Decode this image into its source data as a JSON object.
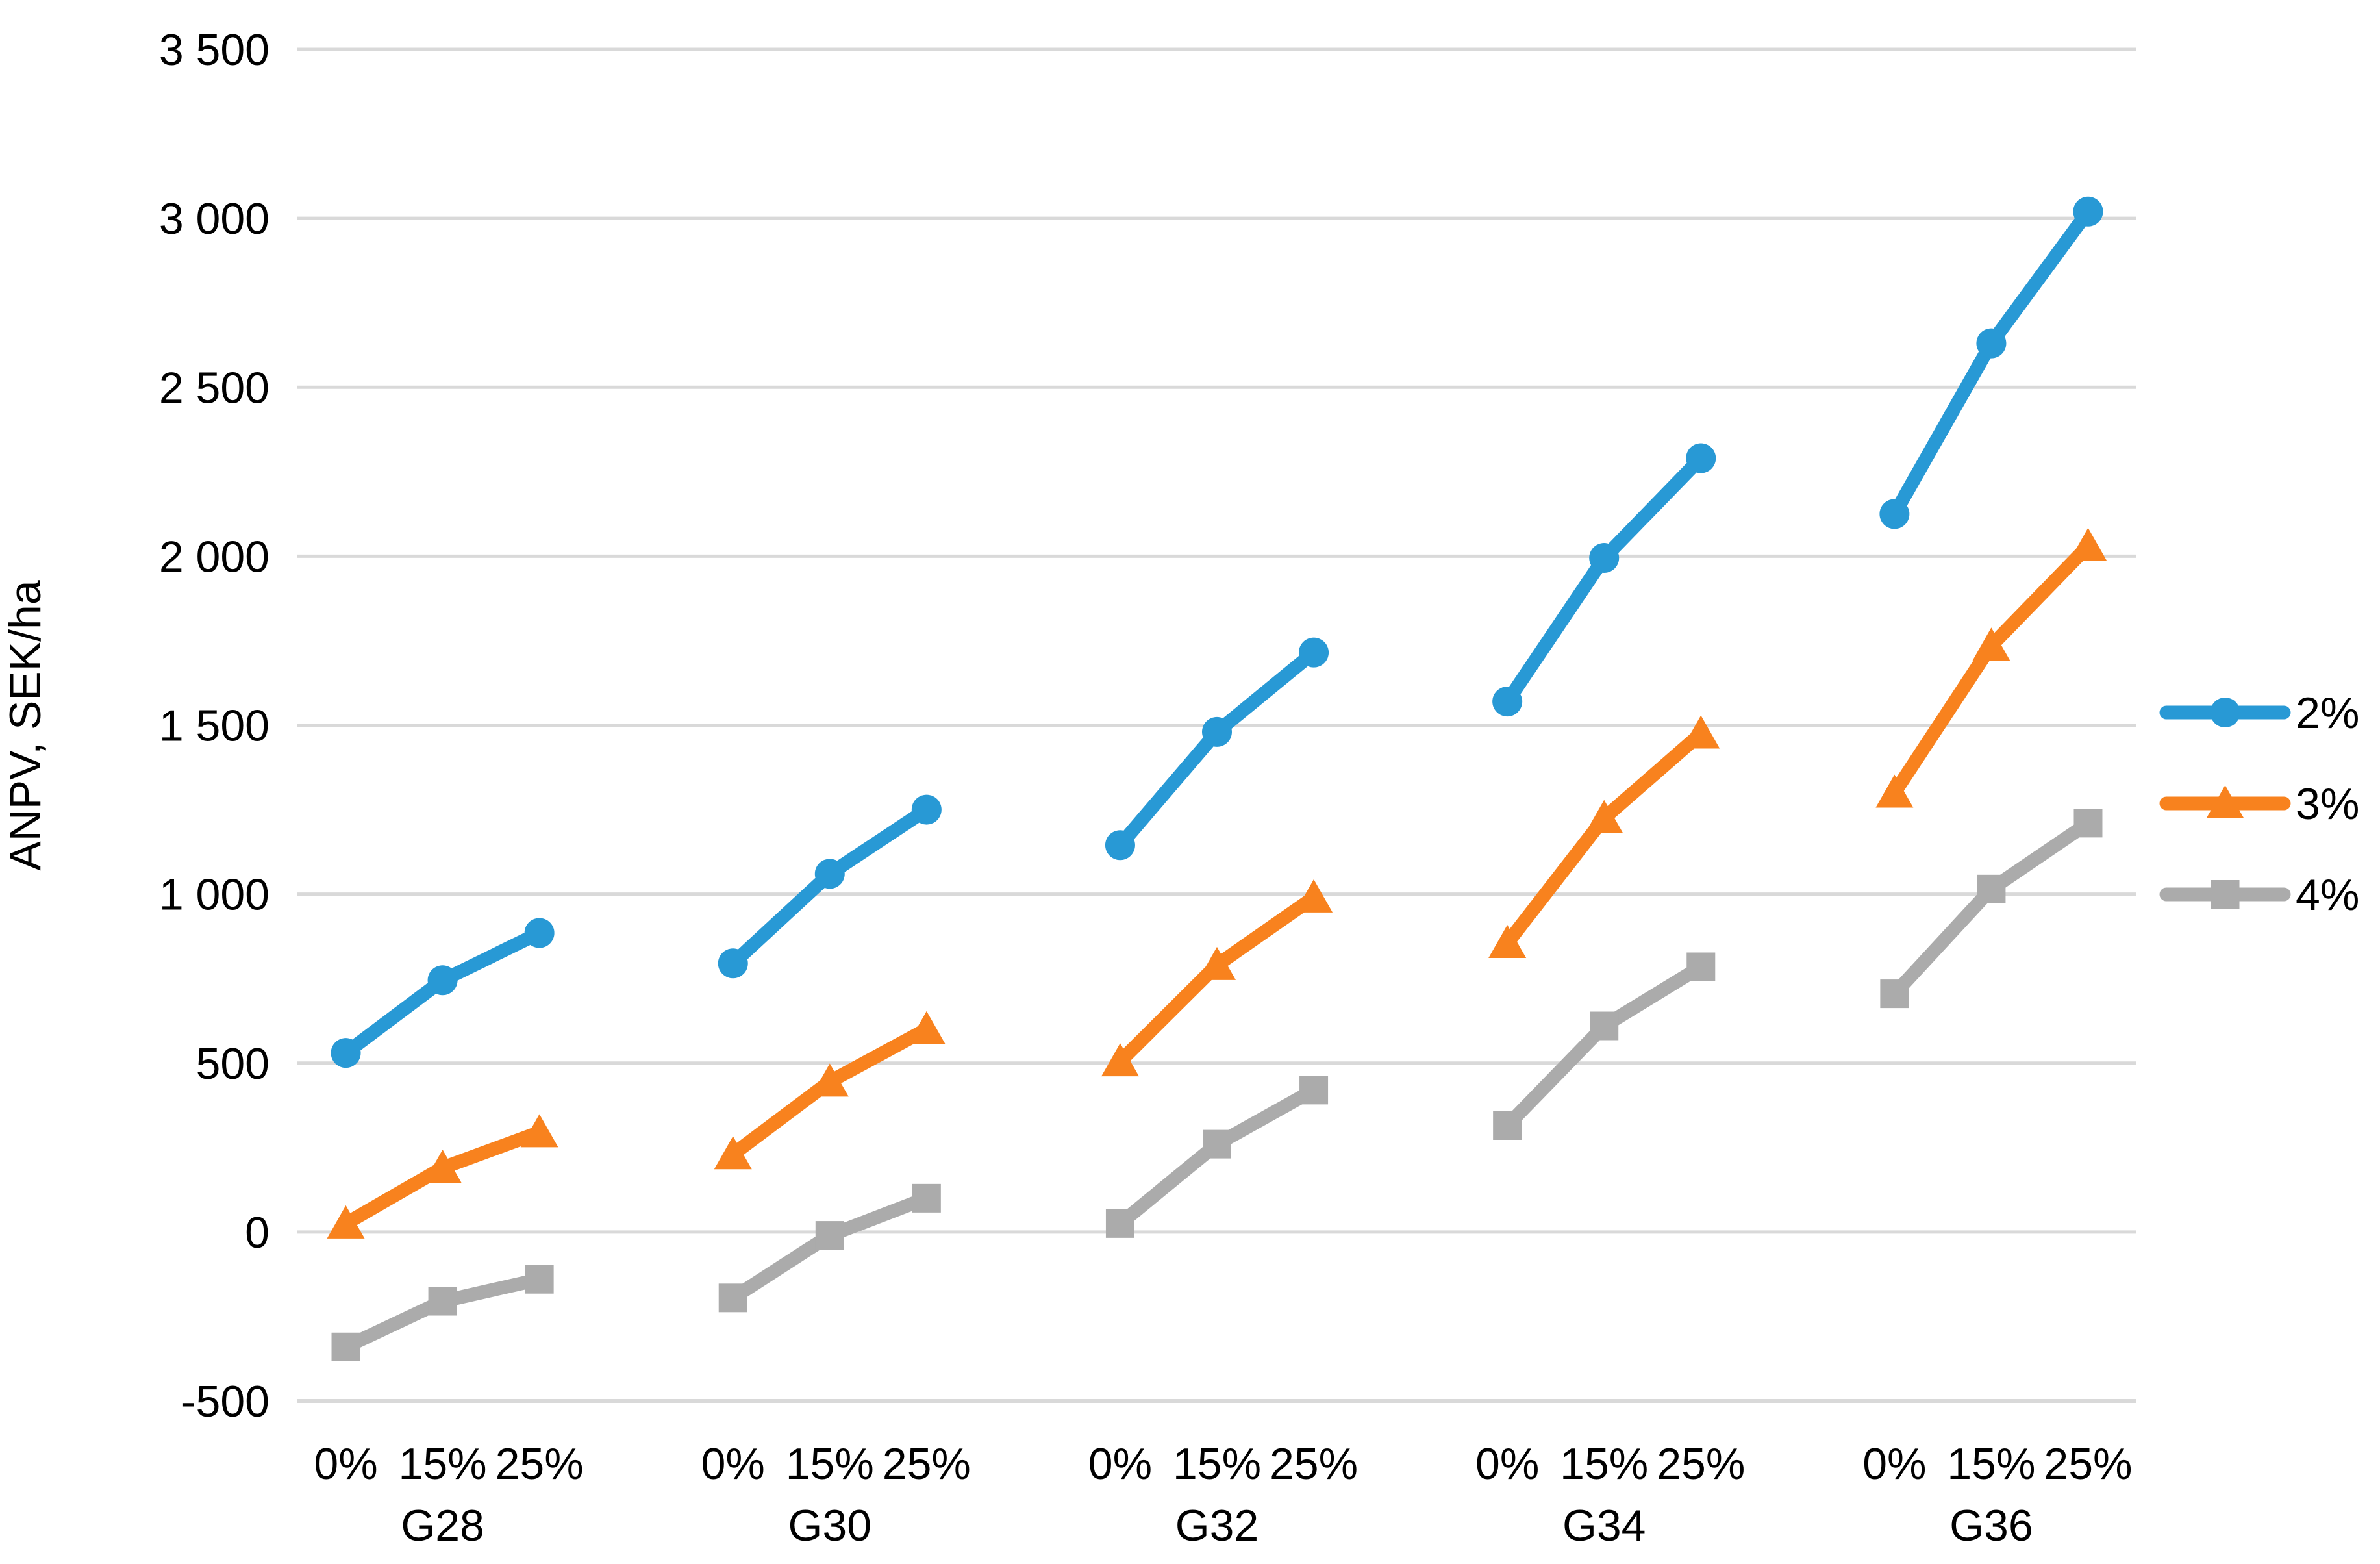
{
  "chart_data": {
    "type": "line",
    "title": "",
    "ylabel": "ANPV, SEK/ha",
    "xlabel": "",
    "ylim": [
      -500,
      3500
    ],
    "ytick_step": 500,
    "ytick_labels": [
      "3 500",
      "3 000",
      "2 500",
      "2 000",
      "1 500",
      "1 000",
      "500",
      "0",
      "-500"
    ],
    "ytick_values": [
      3500,
      3000,
      2500,
      2000,
      1500,
      1000,
      500,
      0,
      -500
    ],
    "groups": [
      "G28",
      "G30",
      "G32",
      "G34",
      "G36"
    ],
    "subcategories": [
      "0%",
      "15%",
      "25%"
    ],
    "grid": true,
    "legend_position": "right",
    "series": [
      {
        "name": "2%",
        "marker": "circle",
        "color": "#2899D5",
        "values": [
          [
            530,
            745,
            885
          ],
          [
            795,
            1060,
            1250
          ],
          [
            1145,
            1480,
            1715
          ],
          [
            1570,
            1995,
            2290
          ],
          [
            2125,
            2630,
            3020
          ]
        ]
      },
      {
        "name": "3%",
        "marker": "triangle",
        "color": "#F8821E",
        "values": [
          [
            25,
            190,
            295
          ],
          [
            230,
            445,
            600
          ],
          [
            505,
            790,
            990
          ],
          [
            855,
            1225,
            1475
          ],
          [
            1300,
            1735,
            2030
          ]
        ]
      },
      {
        "name": "4%",
        "marker": "square",
        "color": "#ABABAB",
        "values": [
          [
            -340,
            -205,
            -140
          ],
          [
            -195,
            -10,
            100
          ],
          [
            25,
            260,
            420
          ],
          [
            315,
            610,
            785
          ],
          [
            705,
            1015,
            1210
          ]
        ]
      }
    ],
    "gridline_color": "#D9D9D9",
    "axis_line_color": "#D9D9D9",
    "text_color": "#000000"
  }
}
